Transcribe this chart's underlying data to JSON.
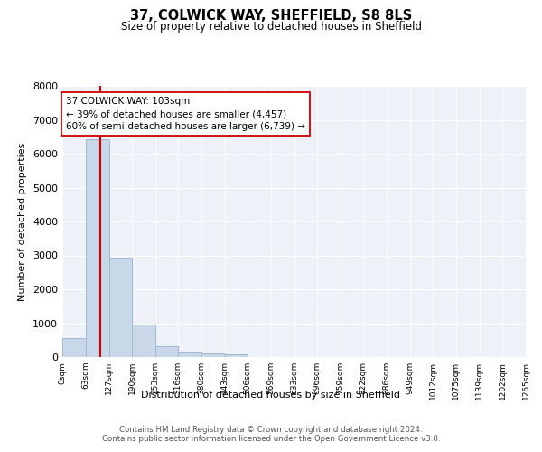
{
  "title1": "37, COLWICK WAY, SHEFFIELD, S8 8LS",
  "title2": "Size of property relative to detached houses in Sheffield",
  "xlabel": "Distribution of detached houses by size in Sheffield",
  "ylabel": "Number of detached properties",
  "bar_edges": [
    0,
    63,
    127,
    190,
    253,
    316,
    380,
    443,
    506,
    569,
    633,
    696,
    759,
    822,
    886,
    949,
    1012,
    1075,
    1139,
    1202,
    1265
  ],
  "bar_heights": [
    550,
    6430,
    2930,
    970,
    330,
    155,
    110,
    75,
    0,
    0,
    0,
    0,
    0,
    0,
    0,
    0,
    0,
    0,
    0,
    0
  ],
  "bar_color": "#c8d8e8",
  "bar_edgecolor": "#a0b8d0",
  "property_line_x": 103,
  "property_line_color": "#cc0000",
  "annotation_text": "37 COLWICK WAY: 103sqm\n← 39% of detached houses are smaller (4,457)\n60% of semi-detached houses are larger (6,739) →",
  "annotation_box_color": "#ffffff",
  "annotation_box_edge": "#cc0000",
  "ylim": [
    0,
    8000
  ],
  "yticks": [
    0,
    1000,
    2000,
    3000,
    4000,
    5000,
    6000,
    7000,
    8000
  ],
  "background_color": "#eef2f8",
  "footer_line1": "Contains HM Land Registry data © Crown copyright and database right 2024.",
  "footer_line2": "Contains public sector information licensed under the Open Government Licence v3.0."
}
